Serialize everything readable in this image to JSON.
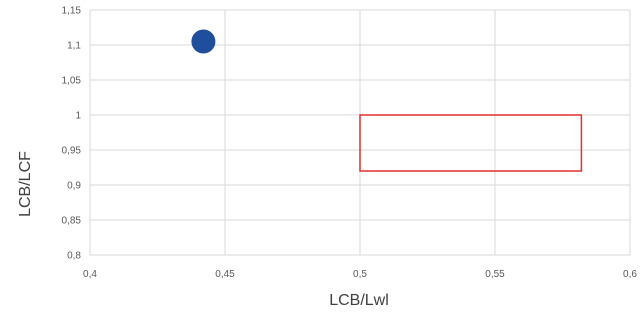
{
  "chart_data": {
    "type": "scatter",
    "title": "",
    "xlabel": "LCB/Lwl",
    "ylabel": "LCB/LCF",
    "xlim": [
      0.4,
      0.6
    ],
    "ylim": [
      0.8,
      1.15
    ],
    "x_ticks": [
      "0,4",
      "0,45",
      "0,5",
      "0,55",
      "0,6"
    ],
    "y_ticks": [
      "0,8",
      "0,85",
      "0,9",
      "0,95",
      "1",
      "1,05",
      "1,1",
      "1,15"
    ],
    "grid": true,
    "legend": "none",
    "series": [
      {
        "x": [
          0.442
        ],
        "y": [
          1.105
        ],
        "color": "#1f4e9c"
      }
    ],
    "annotations": [
      {
        "shape": "rectangle",
        "x_range": [
          0.5,
          0.582
        ],
        "y_range": [
          0.92,
          1.0
        ],
        "color": "#e03030"
      }
    ]
  }
}
